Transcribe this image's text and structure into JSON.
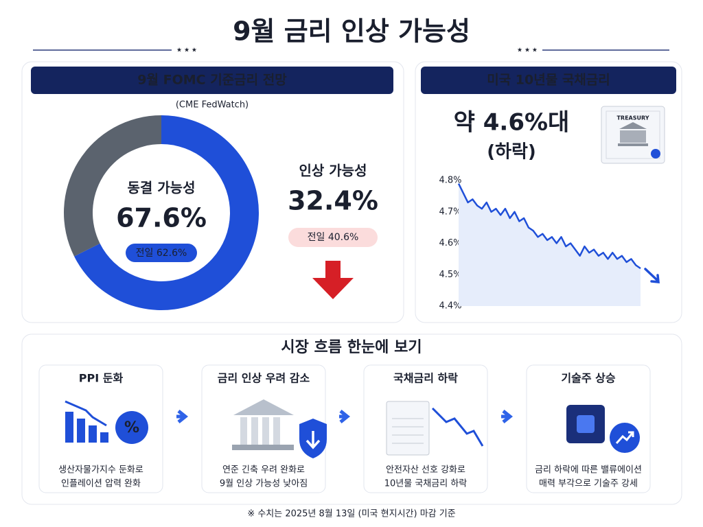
{
  "header": {
    "title": "9월 금리 인상 가능성"
  },
  "chart_data": [
    {
      "type": "donut",
      "title": "9월 FOMC 기준금리 전망",
      "subtitle": "(CME FedWatch)",
      "categories": [
        "동결 가능성",
        "인상 가능성"
      ],
      "values": [
        67.6,
        32.4
      ],
      "value_labels": [
        "67.6%",
        "32.4%"
      ],
      "colors": [
        "#1f4fd8",
        "#5b636e"
      ],
      "previous_labels": [
        "전일 62.6%",
        "전일 40.6%"
      ]
    },
    {
      "type": "line",
      "title": "미국 10년물 국채금리",
      "annotation": "약 4.6%대",
      "annotation_note": "(하락)",
      "color": "#1f4fd8",
      "values": [
        4.79,
        4.76,
        4.73,
        4.74,
        4.72,
        4.71,
        4.73,
        4.7,
        4.71,
        4.69,
        4.71,
        4.68,
        4.7,
        4.67,
        4.68,
        4.65,
        4.64,
        4.62,
        4.63,
        4.61,
        4.62,
        4.6,
        4.62,
        4.59,
        4.6,
        4.58,
        4.56,
        4.59,
        4.57,
        4.58,
        4.56,
        4.57,
        4.55,
        4.57,
        4.55,
        4.56,
        4.54,
        4.55,
        4.53,
        4.52
      ],
      "ylim": [
        4.4,
        4.8
      ],
      "yticks": [
        {
          "value": 4.8,
          "label": "4.8%"
        },
        {
          "value": 4.7,
          "label": "4.7%"
        },
        {
          "value": 4.6,
          "label": "4.6%"
        },
        {
          "value": 4.5,
          "label": "4.5%"
        },
        {
          "value": 4.4,
          "label": "4.4%"
        }
      ]
    }
  ],
  "flow": {
    "title": "시장 흐름 한눈에 보기",
    "steps": [
      {
        "title": "PPI 둔화",
        "text": [
          "생산자물가지수 둔화로",
          "인플레이션 압력 완화"
        ]
      },
      {
        "title": "금리 인상 우려 감소",
        "text": [
          "연준 긴축 우려 완화로",
          "9월 인상 가능성 낮아짐"
        ]
      },
      {
        "title": "국채금리 하락",
        "text": [
          "안전자산 선호 강화로",
          "10년물 국채금리 하락"
        ]
      },
      {
        "title": "기술주 상승",
        "text": [
          "금리 하락에 따른 밸류에이션",
          "매력 부각으로 기술주 강세"
        ]
      }
    ]
  },
  "footnote": "※ 수치는 2025년 8월 13일 (미국 현지시간) 마감 기준"
}
